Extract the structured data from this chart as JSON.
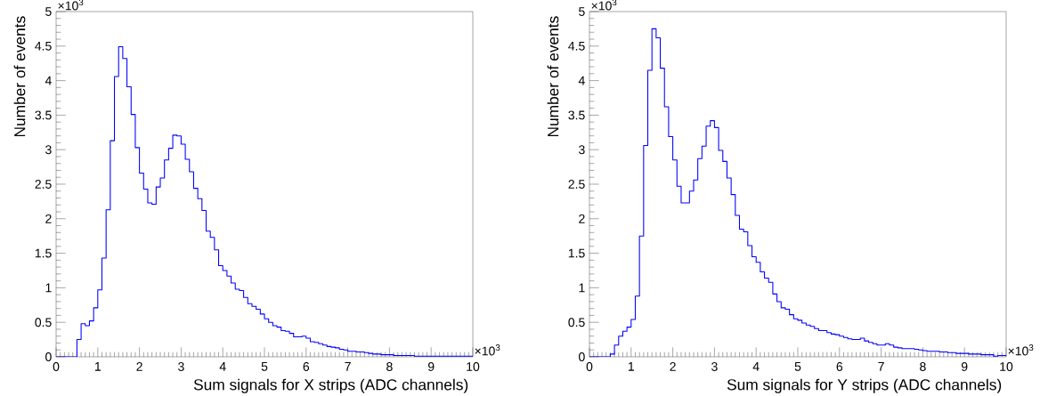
{
  "chart_data": [
    {
      "type": "histogram",
      "xlabel": "Sum signals for X strips (ADC channels)",
      "ylabel": "Number of events",
      "color": "#0000ff",
      "annotations": [
        "×10$^{3}$",
        "×10$^{3}$"
      ],
      "bins": [
        0,
        0.1,
        0.2,
        0.3,
        0.4,
        0.5,
        0.6,
        0.7,
        0.8,
        0.9,
        1,
        1.1,
        1.2,
        1.3,
        1.4,
        1.5,
        1.6,
        1.7,
        1.8,
        1.9,
        2,
        2.1,
        2.2,
        2.3,
        2.4,
        2.5,
        2.6,
        2.7,
        2.8,
        2.9,
        3,
        3.1,
        3.2,
        3.3,
        3.4,
        3.5,
        3.6,
        3.7,
        3.8,
        3.9,
        4,
        4.1,
        4.2,
        4.3,
        4.4,
        4.5,
        4.6,
        4.7,
        4.8,
        4.9,
        5,
        5.1,
        5.2,
        5.3,
        5.4,
        5.5,
        5.6,
        5.7,
        5.8,
        5.9,
        6,
        6.1,
        6.2,
        6.3,
        6.4,
        6.5,
        6.6,
        6.7,
        6.8,
        6.9,
        7,
        7.1,
        7.2,
        7.3,
        7.4,
        7.5,
        7.6,
        7.7,
        7.8,
        7.9,
        8,
        8.1,
        8.2,
        8.3,
        8.4,
        8.5,
        8.6,
        8.7,
        8.8,
        8.9,
        9,
        9.1,
        9.2,
        9.3,
        9.4,
        9.5,
        9.6,
        9.7,
        9.8,
        9.9,
        10
      ],
      "values": [
        0,
        0,
        0,
        0,
        0,
        0.25,
        0.48,
        0.45,
        0.52,
        0.71,
        0.97,
        1.43,
        2.13,
        3.13,
        4.06,
        4.49,
        4.32,
        3.91,
        3.51,
        3.03,
        2.66,
        2.43,
        2.23,
        2.21,
        2.46,
        2.59,
        2.85,
        3.02,
        3.21,
        3.2,
        3.08,
        2.86,
        2.68,
        2.44,
        2.29,
        2.12,
        1.82,
        1.73,
        1.55,
        1.32,
        1.25,
        1.17,
        1.07,
        0.98,
        0.96,
        0.86,
        0.77,
        0.73,
        0.69,
        0.62,
        0.55,
        0.5,
        0.45,
        0.43,
        0.38,
        0.37,
        0.34,
        0.29,
        0.29,
        0.3,
        0.27,
        0.22,
        0.21,
        0.19,
        0.17,
        0.15,
        0.14,
        0.13,
        0.11,
        0.1,
        0.08,
        0.08,
        0.07,
        0.07,
        0.06,
        0.05,
        0.04,
        0.04,
        0.03,
        0.03,
        0.03,
        0.02,
        0.02,
        0.02,
        0.02,
        0.02,
        0.01,
        0.01,
        0.01,
        0.01,
        0.01,
        0.01,
        0.01,
        0.01,
        0.01,
        0.01,
        0.01,
        0.01,
        0.01,
        0.01
      ],
      "xlim": [
        0,
        10
      ],
      "ylim": [
        0,
        5
      ],
      "xticks": [
        0,
        1,
        2,
        3,
        4,
        5,
        6,
        7,
        8,
        9,
        10
      ],
      "yticks": [
        0,
        0.5,
        1,
        1.5,
        2,
        2.5,
        3,
        3.5,
        4,
        4.5,
        5
      ],
      "grid": false
    },
    {
      "type": "histogram",
      "xlabel": "Sum signals for Y strips (ADC channels)",
      "ylabel": "Number of events",
      "color": "#0000ff",
      "annotations": [
        "×10$^{3}$",
        "×10$^{3}$"
      ],
      "bins": [
        0,
        0.1,
        0.2,
        0.3,
        0.4,
        0.5,
        0.6,
        0.7,
        0.8,
        0.9,
        1,
        1.1,
        1.2,
        1.3,
        1.4,
        1.5,
        1.6,
        1.7,
        1.8,
        1.9,
        2,
        2.1,
        2.2,
        2.3,
        2.4,
        2.5,
        2.6,
        2.7,
        2.8,
        2.9,
        3,
        3.1,
        3.2,
        3.3,
        3.4,
        3.5,
        3.6,
        3.7,
        3.8,
        3.9,
        4,
        4.1,
        4.2,
        4.3,
        4.4,
        4.5,
        4.6,
        4.7,
        4.8,
        4.9,
        5,
        5.1,
        5.2,
        5.3,
        5.4,
        5.5,
        5.6,
        5.7,
        5.8,
        5.9,
        6,
        6.1,
        6.2,
        6.3,
        6.4,
        6.5,
        6.6,
        6.7,
        6.8,
        6.9,
        7,
        7.1,
        7.2,
        7.3,
        7.4,
        7.5,
        7.6,
        7.7,
        7.8,
        7.9,
        8,
        8.1,
        8.2,
        8.3,
        8.4,
        8.5,
        8.6,
        8.7,
        8.8,
        8.9,
        9,
        9.1,
        9.2,
        9.3,
        9.4,
        9.5,
        9.6,
        9.7,
        9.8,
        9.9,
        10
      ],
      "values": [
        0,
        0,
        0,
        0,
        0,
        0.04,
        0.17,
        0.3,
        0.37,
        0.43,
        0.54,
        0.88,
        1.75,
        3.06,
        4.15,
        4.75,
        4.62,
        4.18,
        3.62,
        3.19,
        2.85,
        2.47,
        2.23,
        2.23,
        2.4,
        2.56,
        2.87,
        3.05,
        3.34,
        3.42,
        3.32,
        2.99,
        2.83,
        2.59,
        2.35,
        2.05,
        1.85,
        1.81,
        1.61,
        1.45,
        1.37,
        1.23,
        1.14,
        1.08,
        0.91,
        0.8,
        0.71,
        0.69,
        0.61,
        0.55,
        0.53,
        0.49,
        0.46,
        0.44,
        0.41,
        0.38,
        0.38,
        0.35,
        0.33,
        0.32,
        0.3,
        0.28,
        0.26,
        0.25,
        0.25,
        0.27,
        0.23,
        0.21,
        0.19,
        0.17,
        0.17,
        0.19,
        0.17,
        0.14,
        0.13,
        0.12,
        0.12,
        0.12,
        0.11,
        0.1,
        0.09,
        0.08,
        0.08,
        0.08,
        0.07,
        0.07,
        0.06,
        0.06,
        0.05,
        0.05,
        0.05,
        0.04,
        0.04,
        0.04,
        0.03,
        0.03,
        0.03,
        0.01,
        0.02,
        0.02
      ],
      "xlim": [
        0,
        10
      ],
      "ylim": [
        0,
        5
      ],
      "xticks": [
        0,
        1,
        2,
        3,
        4,
        5,
        6,
        7,
        8,
        9,
        10
      ],
      "yticks": [
        0,
        0.5,
        1,
        1.5,
        2,
        2.5,
        3,
        3.5,
        4,
        4.5,
        5
      ],
      "grid": false
    }
  ]
}
